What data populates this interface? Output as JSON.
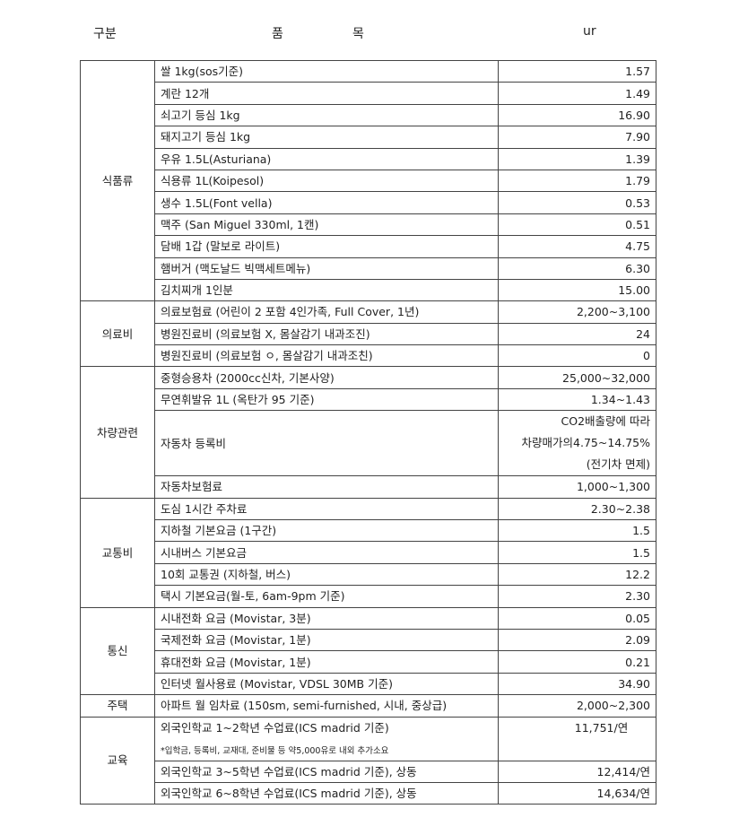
{
  "header": {
    "category": "구분",
    "item_1": "품",
    "item_2": "목",
    "unit": "ur"
  },
  "groups": [
    {
      "category": "식품류",
      "rows": [
        {
          "item": "쌀 1kg(sos기준)",
          "value": "1.57"
        },
        {
          "item": "계란 12개",
          "value": "1.49"
        },
        {
          "item": "쇠고기 등심 1kg",
          "value": "16.90"
        },
        {
          "item": "돼지고기 등심 1kg",
          "value": "7.90"
        },
        {
          "item": "우유 1.5L(Asturiana)",
          "value": "1.39"
        },
        {
          "item": "식용류 1L(Koipesol)",
          "value": "1.79"
        },
        {
          "item": "생수 1.5L(Font vella)",
          "value": "0.53"
        },
        {
          "item": "맥주 (San Miguel 330ml, 1캔)",
          "value": "0.51"
        },
        {
          "item": "담배 1갑 (말보로 라이트)",
          "value": "4.75"
        },
        {
          "item": "햄버거 (맥도날드 빅맥세트메뉴)",
          "value": "6.30"
        },
        {
          "item": "김치찌개 1인분",
          "value": "15.00"
        }
      ]
    },
    {
      "category": "의료비",
      "rows": [
        {
          "item": "의료보험료 (어린이 2 포함 4인가족, Full Cover, 1년)",
          "value": "2,200~3,100"
        },
        {
          "item": "병원진료비 (의료보험 X, 몸살감기 내과조진)",
          "value": "24"
        },
        {
          "item": "병원진료비 (의료보험 ㅇ, 몸살감기 내과조친)",
          "value": "0"
        }
      ]
    },
    {
      "category": "차량관련",
      "rows": [
        {
          "item": "중형승용차 (2000cc신차, 기본사양)",
          "value": "25,000~32,000"
        },
        {
          "item": "무연휘발유 1L (옥탄가 95 기준)",
          "value": "1.34~1.43"
        },
        {
          "item": "자동차 등록비",
          "value_lines": [
            "CO2배출량에 따라",
            "차량매가의4.75~14.75%",
            "(전기차 면제)"
          ]
        },
        {
          "item": "자동차보험료",
          "value": "1,000~1,300"
        }
      ]
    },
    {
      "category": "교통비",
      "rows": [
        {
          "item": "도심 1시간 주차료",
          "value": "2.30~2.38"
        },
        {
          "item": "지하철 기본요금 (1구간)",
          "value": "1.5"
        },
        {
          "item": "시내버스 기본요금",
          "value": "1.5"
        },
        {
          "item": "10회 교통권 (지하철, 버스)",
          "value": "12.2"
        },
        {
          "item": "택시 기본요금(월-토, 6am-9pm 기준)",
          "value": "2.30"
        }
      ]
    },
    {
      "category": "통신",
      "rows": [
        {
          "item": "시내전화 요금 (Movistar, 3분)",
          "value": "0.05"
        },
        {
          "item": "국제전화 요금 (Movistar, 1분)",
          "value": "2.09"
        },
        {
          "item": "휴대전화 요금 (Movistar, 1분)",
          "value": "0.21"
        },
        {
          "item": "인터넷 월사용료 (Movistar, VDSL 30MB 기준)",
          "value": "34.90"
        }
      ]
    },
    {
      "category": "주택",
      "rows": [
        {
          "item": "아파트 월 임차료 (150sm, semi-furnished, 시내, 중상급)",
          "value": "2,000~2,300"
        }
      ]
    },
    {
      "category": "교육",
      "rows": [
        {
          "item": "외국인학교 1~2학년 수업료(ICS madrid 기준)",
          "note": "*입학금, 등록비, 교재대, 준비물 등 약5,000유로 내외 추가소요",
          "value": "11,751/연"
        },
        {
          "item": "외국인학교 3~5학년 수업료(ICS madrid 기준), 상동",
          "value": "12,414/연"
        },
        {
          "item": "외국인학교 6~8학년 수업료(ICS madrid 기준), 상동",
          "value": "14,634/연"
        }
      ]
    }
  ]
}
